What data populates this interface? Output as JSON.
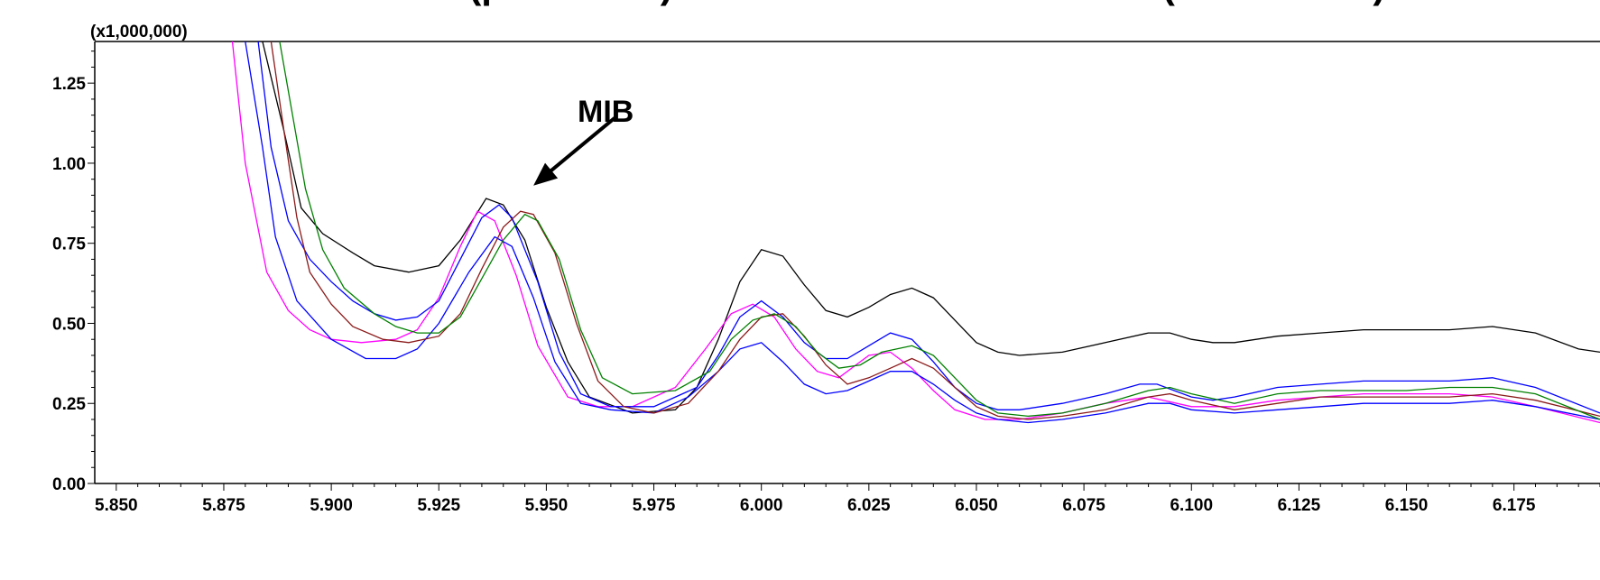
{
  "chart_data": {
    "type": "line",
    "title": "with SPME (pink trace) overlaid with SPME Arrow (black trace).",
    "y_multiplier_label": "(x1,000,000)",
    "xlabel": "",
    "ylabel": "",
    "xlim": [
      5.845,
      6.195
    ],
    "ylim": [
      0.0,
      1.38
    ],
    "x_ticks": [
      "5.850",
      "5.875",
      "5.900",
      "5.925",
      "5.950",
      "5.975",
      "6.000",
      "6.025",
      "6.050",
      "6.075",
      "6.100",
      "6.125",
      "6.150",
      "6.175"
    ],
    "y_ticks": [
      "0.00",
      "0.25",
      "0.50",
      "0.75",
      "1.00",
      "1.25"
    ],
    "annotation": {
      "text": "MIB",
      "arrow_to": [
        5.947,
        0.93
      ]
    },
    "grid": false,
    "series": [
      {
        "color": "#000000",
        "points": [
          [
            5.884,
            1.38
          ],
          [
            5.889,
            1.1
          ],
          [
            5.893,
            0.86
          ],
          [
            5.898,
            0.78
          ],
          [
            5.905,
            0.72
          ],
          [
            5.91,
            0.68
          ],
          [
            5.918,
            0.66
          ],
          [
            5.925,
            0.68
          ],
          [
            5.93,
            0.76
          ],
          [
            5.936,
            0.89
          ],
          [
            5.94,
            0.87
          ],
          [
            5.945,
            0.76
          ],
          [
            5.95,
            0.55
          ],
          [
            5.955,
            0.38
          ],
          [
            5.96,
            0.27
          ],
          [
            5.97,
            0.22
          ],
          [
            5.98,
            0.23
          ],
          [
            5.985,
            0.3
          ],
          [
            5.99,
            0.45
          ],
          [
            5.995,
            0.63
          ],
          [
            6.0,
            0.73
          ],
          [
            6.005,
            0.71
          ],
          [
            6.01,
            0.62
          ],
          [
            6.015,
            0.54
          ],
          [
            6.02,
            0.52
          ],
          [
            6.025,
            0.55
          ],
          [
            6.03,
            0.59
          ],
          [
            6.035,
            0.61
          ],
          [
            6.04,
            0.58
          ],
          [
            6.045,
            0.51
          ],
          [
            6.05,
            0.44
          ],
          [
            6.055,
            0.41
          ],
          [
            6.06,
            0.4
          ],
          [
            6.07,
            0.41
          ],
          [
            6.08,
            0.44
          ],
          [
            6.09,
            0.47
          ],
          [
            6.095,
            0.47
          ],
          [
            6.1,
            0.45
          ],
          [
            6.105,
            0.44
          ],
          [
            6.11,
            0.44
          ],
          [
            6.12,
            0.46
          ],
          [
            6.13,
            0.47
          ],
          [
            6.14,
            0.48
          ],
          [
            6.15,
            0.48
          ],
          [
            6.16,
            0.48
          ],
          [
            6.17,
            0.49
          ],
          [
            6.18,
            0.47
          ],
          [
            6.19,
            0.42
          ],
          [
            6.195,
            0.41
          ]
        ]
      },
      {
        "color": "#ff00ff",
        "points": [
          [
            5.877,
            1.38
          ],
          [
            5.88,
            1.0
          ],
          [
            5.885,
            0.66
          ],
          [
            5.89,
            0.54
          ],
          [
            5.895,
            0.48
          ],
          [
            5.9,
            0.45
          ],
          [
            5.907,
            0.44
          ],
          [
            5.915,
            0.45
          ],
          [
            5.92,
            0.48
          ],
          [
            5.925,
            0.58
          ],
          [
            5.93,
            0.74
          ],
          [
            5.934,
            0.85
          ],
          [
            5.938,
            0.82
          ],
          [
            5.943,
            0.65
          ],
          [
            5.948,
            0.43
          ],
          [
            5.955,
            0.27
          ],
          [
            5.962,
            0.24
          ],
          [
            5.97,
            0.24
          ],
          [
            5.98,
            0.3
          ],
          [
            5.987,
            0.42
          ],
          [
            5.993,
            0.53
          ],
          [
            5.998,
            0.56
          ],
          [
            6.003,
            0.52
          ],
          [
            6.008,
            0.42
          ],
          [
            6.013,
            0.35
          ],
          [
            6.018,
            0.33
          ],
          [
            6.025,
            0.4
          ],
          [
            6.03,
            0.41
          ],
          [
            6.035,
            0.36
          ],
          [
            6.04,
            0.29
          ],
          [
            6.045,
            0.23
          ],
          [
            6.052,
            0.2
          ],
          [
            6.06,
            0.2
          ],
          [
            6.07,
            0.22
          ],
          [
            6.08,
            0.25
          ],
          [
            6.09,
            0.27
          ],
          [
            6.1,
            0.24
          ],
          [
            6.11,
            0.24
          ],
          [
            6.12,
            0.26
          ],
          [
            6.13,
            0.27
          ],
          [
            6.14,
            0.28
          ],
          [
            6.15,
            0.28
          ],
          [
            6.16,
            0.28
          ],
          [
            6.17,
            0.27
          ],
          [
            6.18,
            0.24
          ],
          [
            6.195,
            0.19
          ]
        ]
      },
      {
        "color": "#0000ff",
        "points": [
          [
            5.88,
            1.38
          ],
          [
            5.884,
            1.05
          ],
          [
            5.887,
            0.77
          ],
          [
            5.892,
            0.57
          ],
          [
            5.9,
            0.45
          ],
          [
            5.908,
            0.39
          ],
          [
            5.915,
            0.39
          ],
          [
            5.92,
            0.42
          ],
          [
            5.925,
            0.5
          ],
          [
            5.932,
            0.66
          ],
          [
            5.938,
            0.77
          ],
          [
            5.942,
            0.74
          ],
          [
            5.947,
            0.58
          ],
          [
            5.952,
            0.38
          ],
          [
            5.958,
            0.25
          ],
          [
            5.965,
            0.23
          ],
          [
            5.975,
            0.22
          ],
          [
            5.983,
            0.27
          ],
          [
            5.99,
            0.35
          ],
          [
            5.995,
            0.42
          ],
          [
            6.0,
            0.44
          ],
          [
            6.005,
            0.38
          ],
          [
            6.01,
            0.31
          ],
          [
            6.015,
            0.28
          ],
          [
            6.02,
            0.29
          ],
          [
            6.025,
            0.32
          ],
          [
            6.03,
            0.35
          ],
          [
            6.035,
            0.35
          ],
          [
            6.04,
            0.31
          ],
          [
            6.045,
            0.26
          ],
          [
            6.05,
            0.22
          ],
          [
            6.055,
            0.2
          ],
          [
            6.062,
            0.19
          ],
          [
            6.07,
            0.2
          ],
          [
            6.08,
            0.22
          ],
          [
            6.09,
            0.25
          ],
          [
            6.095,
            0.25
          ],
          [
            6.1,
            0.23
          ],
          [
            6.11,
            0.22
          ],
          [
            6.12,
            0.23
          ],
          [
            6.13,
            0.24
          ],
          [
            6.14,
            0.25
          ],
          [
            6.15,
            0.25
          ],
          [
            6.16,
            0.25
          ],
          [
            6.17,
            0.26
          ],
          [
            6.18,
            0.24
          ],
          [
            6.195,
            0.2
          ]
        ]
      },
      {
        "color": "#0000ff",
        "points": [
          [
            5.883,
            1.38
          ],
          [
            5.886,
            1.05
          ],
          [
            5.89,
            0.82
          ],
          [
            5.895,
            0.7
          ],
          [
            5.9,
            0.63
          ],
          [
            5.905,
            0.57
          ],
          [
            5.91,
            0.53
          ],
          [
            5.915,
            0.51
          ],
          [
            5.92,
            0.52
          ],
          [
            5.925,
            0.57
          ],
          [
            5.93,
            0.7
          ],
          [
            5.935,
            0.83
          ],
          [
            5.939,
            0.87
          ],
          [
            5.942,
            0.83
          ],
          [
            5.948,
            0.63
          ],
          [
            5.953,
            0.41
          ],
          [
            5.958,
            0.28
          ],
          [
            5.965,
            0.24
          ],
          [
            5.975,
            0.24
          ],
          [
            5.985,
            0.3
          ],
          [
            5.99,
            0.4
          ],
          [
            5.995,
            0.52
          ],
          [
            6.0,
            0.57
          ],
          [
            6.005,
            0.52
          ],
          [
            6.01,
            0.44
          ],
          [
            6.015,
            0.39
          ],
          [
            6.02,
            0.39
          ],
          [
            6.025,
            0.43
          ],
          [
            6.03,
            0.47
          ],
          [
            6.035,
            0.45
          ],
          [
            6.04,
            0.38
          ],
          [
            6.045,
            0.3
          ],
          [
            6.05,
            0.25
          ],
          [
            6.055,
            0.23
          ],
          [
            6.06,
            0.23
          ],
          [
            6.07,
            0.25
          ],
          [
            6.08,
            0.28
          ],
          [
            6.088,
            0.31
          ],
          [
            6.092,
            0.31
          ],
          [
            6.1,
            0.27
          ],
          [
            6.105,
            0.26
          ],
          [
            6.11,
            0.27
          ],
          [
            6.12,
            0.3
          ],
          [
            6.13,
            0.31
          ],
          [
            6.14,
            0.32
          ],
          [
            6.15,
            0.32
          ],
          [
            6.16,
            0.32
          ],
          [
            6.17,
            0.33
          ],
          [
            6.18,
            0.3
          ],
          [
            6.195,
            0.22
          ]
        ]
      },
      {
        "color": "#8b1a1a",
        "points": [
          [
            5.886,
            1.38
          ],
          [
            5.889,
            1.1
          ],
          [
            5.892,
            0.83
          ],
          [
            5.895,
            0.66
          ],
          [
            5.9,
            0.56
          ],
          [
            5.905,
            0.49
          ],
          [
            5.912,
            0.45
          ],
          [
            5.918,
            0.44
          ],
          [
            5.925,
            0.46
          ],
          [
            5.93,
            0.53
          ],
          [
            5.935,
            0.67
          ],
          [
            5.94,
            0.8
          ],
          [
            5.944,
            0.85
          ],
          [
            5.947,
            0.84
          ],
          [
            5.952,
            0.72
          ],
          [
            5.957,
            0.5
          ],
          [
            5.962,
            0.32
          ],
          [
            5.968,
            0.24
          ],
          [
            5.975,
            0.22
          ],
          [
            5.983,
            0.25
          ],
          [
            5.99,
            0.35
          ],
          [
            5.995,
            0.45
          ],
          [
            6.0,
            0.52
          ],
          [
            6.005,
            0.53
          ],
          [
            6.01,
            0.46
          ],
          [
            6.015,
            0.37
          ],
          [
            6.02,
            0.31
          ],
          [
            6.025,
            0.33
          ],
          [
            6.03,
            0.36
          ],
          [
            6.035,
            0.39
          ],
          [
            6.04,
            0.36
          ],
          [
            6.045,
            0.3
          ],
          [
            6.05,
            0.24
          ],
          [
            6.055,
            0.21
          ],
          [
            6.062,
            0.2
          ],
          [
            6.07,
            0.21
          ],
          [
            6.08,
            0.23
          ],
          [
            6.09,
            0.27
          ],
          [
            6.095,
            0.28
          ],
          [
            6.1,
            0.26
          ],
          [
            6.11,
            0.23
          ],
          [
            6.12,
            0.25
          ],
          [
            6.13,
            0.27
          ],
          [
            6.14,
            0.27
          ],
          [
            6.15,
            0.27
          ],
          [
            6.16,
            0.27
          ],
          [
            6.17,
            0.28
          ],
          [
            6.18,
            0.26
          ],
          [
            6.195,
            0.21
          ]
        ]
      },
      {
        "color": "#008000",
        "points": [
          [
            5.888,
            1.38
          ],
          [
            5.891,
            1.15
          ],
          [
            5.894,
            0.92
          ],
          [
            5.898,
            0.73
          ],
          [
            5.903,
            0.61
          ],
          [
            5.91,
            0.53
          ],
          [
            5.915,
            0.49
          ],
          [
            5.92,
            0.47
          ],
          [
            5.925,
            0.47
          ],
          [
            5.93,
            0.52
          ],
          [
            5.935,
            0.64
          ],
          [
            5.94,
            0.76
          ],
          [
            5.945,
            0.84
          ],
          [
            5.948,
            0.82
          ],
          [
            5.953,
            0.7
          ],
          [
            5.958,
            0.48
          ],
          [
            5.963,
            0.33
          ],
          [
            5.97,
            0.28
          ],
          [
            5.98,
            0.29
          ],
          [
            5.988,
            0.35
          ],
          [
            5.993,
            0.45
          ],
          [
            5.998,
            0.51
          ],
          [
            6.003,
            0.53
          ],
          [
            6.008,
            0.49
          ],
          [
            6.013,
            0.41
          ],
          [
            6.018,
            0.36
          ],
          [
            6.023,
            0.37
          ],
          [
            6.028,
            0.41
          ],
          [
            6.035,
            0.43
          ],
          [
            6.04,
            0.4
          ],
          [
            6.045,
            0.33
          ],
          [
            6.05,
            0.26
          ],
          [
            6.055,
            0.22
          ],
          [
            6.062,
            0.21
          ],
          [
            6.07,
            0.22
          ],
          [
            6.08,
            0.25
          ],
          [
            6.09,
            0.29
          ],
          [
            6.095,
            0.3
          ],
          [
            6.1,
            0.28
          ],
          [
            6.11,
            0.25
          ],
          [
            6.12,
            0.28
          ],
          [
            6.13,
            0.29
          ],
          [
            6.14,
            0.29
          ],
          [
            6.15,
            0.29
          ],
          [
            6.16,
            0.3
          ],
          [
            6.17,
            0.3
          ],
          [
            6.18,
            0.28
          ],
          [
            6.195,
            0.2
          ]
        ]
      }
    ]
  }
}
